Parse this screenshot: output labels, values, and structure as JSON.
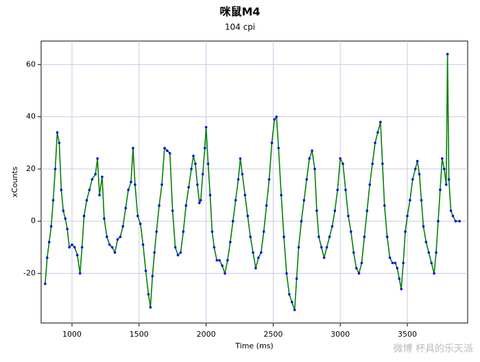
{
  "chart_data": {
    "type": "line",
    "title": "咪鼠M4",
    "subtitle": "104 cpi",
    "x_label": "Time (ms)",
    "y_label": "xCounts",
    "watermark": "微博 杯具的乐天派",
    "x": [
      800,
      815,
      830,
      845,
      860,
      875,
      890,
      905,
      920,
      935,
      950,
      965,
      980,
      1000,
      1020,
      1040,
      1060,
      1075,
      1090,
      1110,
      1130,
      1150,
      1175,
      1190,
      1205,
      1225,
      1240,
      1260,
      1280,
      1300,
      1320,
      1340,
      1360,
      1380,
      1400,
      1420,
      1440,
      1455,
      1470,
      1490,
      1510,
      1530,
      1550,
      1570,
      1585,
      1600,
      1615,
      1630,
      1650,
      1670,
      1690,
      1710,
      1730,
      1750,
      1770,
      1790,
      1810,
      1830,
      1850,
      1870,
      1890,
      1905,
      1920,
      1935,
      1950,
      1960,
      1975,
      1990,
      2000,
      2015,
      2030,
      2045,
      2060,
      2080,
      2100,
      2120,
      2140,
      2160,
      2180,
      2200,
      2220,
      2240,
      2255,
      2270,
      2290,
      2310,
      2330,
      2350,
      2370,
      2390,
      2410,
      2430,
      2450,
      2470,
      2490,
      2510,
      2525,
      2540,
      2560,
      2580,
      2600,
      2620,
      2640,
      2660,
      2675,
      2690,
      2710,
      2730,
      2750,
      2770,
      2790,
      2810,
      2825,
      2840,
      2860,
      2880,
      2900,
      2920,
      2940,
      2960,
      2980,
      3000,
      3020,
      3040,
      3060,
      3080,
      3100,
      3120,
      3140,
      3160,
      3180,
      3200,
      3220,
      3240,
      3260,
      3280,
      3300,
      3315,
      3330,
      3350,
      3370,
      3390,
      3410,
      3425,
      3440,
      3455,
      3470,
      3485,
      3500,
      3520,
      3540,
      3560,
      3575,
      3590,
      3605,
      3620,
      3640,
      3660,
      3680,
      3700,
      3715,
      3730,
      3745,
      3760,
      3775,
      3790,
      3800,
      3810,
      3825,
      3840,
      3860,
      3890
    ],
    "series": [
      {
        "name": "xCounts",
        "color": "#008000",
        "marker_color": "#0000ff",
        "values": [
          -24,
          -14,
          -8,
          -2,
          8,
          20,
          34,
          30,
          12,
          4,
          1,
          -3,
          -10,
          -9,
          -10,
          -13,
          -20,
          -10,
          2,
          8,
          12,
          16,
          18,
          24,
          10,
          17,
          1,
          -6,
          -9,
          -10,
          -12,
          -7,
          -6,
          -2,
          5,
          12,
          15,
          28,
          14,
          2,
          -1,
          -9,
          -19,
          -28,
          -33,
          -21,
          -12,
          -4,
          6,
          14,
          28,
          27,
          26,
          4,
          -10,
          -13,
          -12,
          -4,
          6,
          13,
          20,
          25,
          22,
          14,
          7,
          8,
          18,
          28,
          36,
          22,
          10,
          -4,
          -10,
          -15,
          -15,
          -17,
          -20,
          -15,
          -8,
          0,
          8,
          16,
          24,
          18,
          10,
          2,
          -6,
          -12,
          -18,
          -14,
          -12,
          -4,
          6,
          16,
          30,
          39,
          40,
          28,
          10,
          -6,
          -20,
          -28,
          -31,
          -34,
          -22,
          -10,
          0,
          8,
          16,
          24,
          27,
          20,
          4,
          -6,
          -10,
          -14,
          -10,
          -6,
          -2,
          4,
          12,
          24,
          22,
          12,
          2,
          -4,
          -12,
          -18,
          -20,
          -16,
          -6,
          4,
          14,
          22,
          30,
          34,
          38,
          22,
          6,
          -6,
          -14,
          -16,
          -16,
          -18,
          -22,
          -26,
          -16,
          -4,
          2,
          8,
          16,
          20,
          23,
          18,
          8,
          -2,
          -8,
          -12,
          -16,
          -20,
          -12,
          0,
          12,
          24,
          20,
          14,
          64,
          16,
          4,
          2,
          0,
          0
        ]
      }
    ],
    "xlim": [
      770,
      3950
    ],
    "ylim": [
      -39,
      69
    ],
    "xticks": [
      1000,
      1500,
      2000,
      2500,
      3000,
      3500
    ],
    "yticks": [
      -20,
      0,
      20,
      40,
      60
    ],
    "grid": true
  }
}
